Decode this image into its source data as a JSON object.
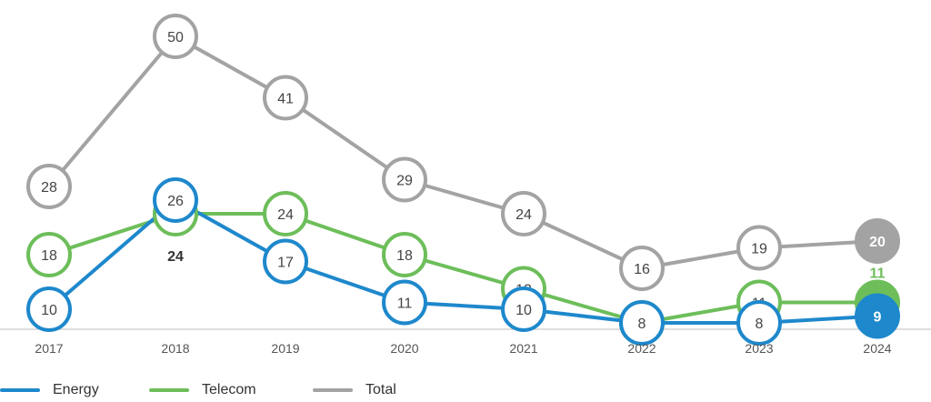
{
  "chart_data": {
    "type": "line",
    "x": [
      "2017",
      "2018",
      "2019",
      "2020",
      "2021",
      "2022",
      "2023",
      "2024"
    ],
    "title": "",
    "xlabel": "",
    "ylabel": "",
    "ylim": [
      0,
      55
    ],
    "grid": false,
    "legend": "bottom-left",
    "series": [
      {
        "name": "Energy",
        "color": "#1E88CC",
        "values": [
          10,
          26,
          17,
          11,
          10,
          8,
          8,
          9
        ]
      },
      {
        "name": "Telecom",
        "color": "#6DBE5A",
        "values": [
          18,
          24,
          24,
          18,
          13,
          8,
          11,
          11
        ]
      },
      {
        "name": "Total",
        "color": "#A3A3A3",
        "values": [
          28,
          50,
          41,
          29,
          24,
          16,
          19,
          20
        ]
      }
    ]
  }
}
